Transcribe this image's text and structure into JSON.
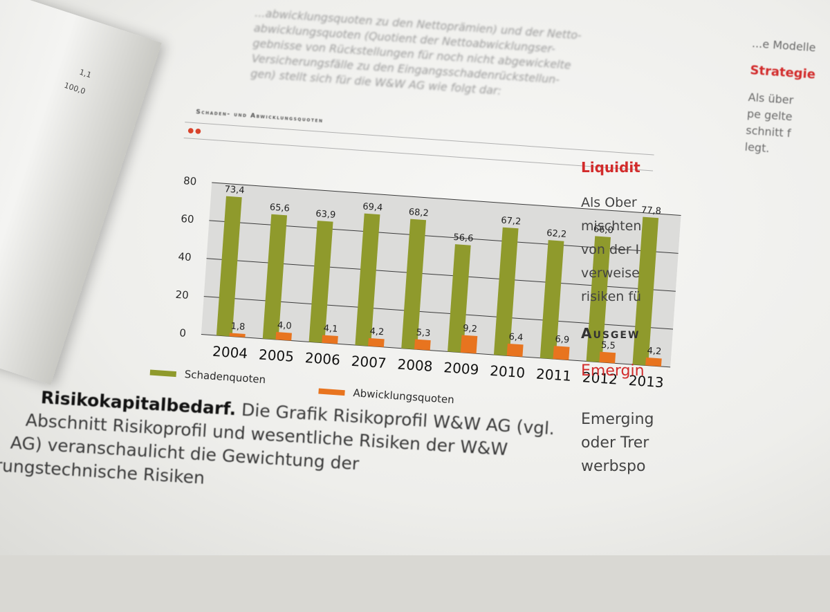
{
  "chart_data": {
    "type": "bar",
    "title": "Schaden- und Abwicklungsquoten",
    "categories": [
      "2004",
      "2005",
      "2006",
      "2007",
      "2008",
      "2009",
      "2010",
      "2011",
      "2012",
      "2013"
    ],
    "series": [
      {
        "name": "Schadenquoten",
        "values": [
          73.4,
          65.6,
          63.9,
          69.4,
          68.2,
          56.6,
          67.2,
          62.2,
          66.0,
          77.8
        ],
        "labels": [
          "73,4",
          "65,6",
          "63,9",
          "69,4",
          "68,2",
          "56,6",
          "67,2",
          "62,2",
          "66,0",
          "77,8"
        ],
        "color": "#8f9a2c"
      },
      {
        "name": "Abwicklungsquoten",
        "values": [
          1.8,
          4.0,
          4.1,
          4.2,
          5.3,
          9.2,
          6.4,
          6.9,
          5.5,
          4.2
        ],
        "labels": [
          "1,8",
          "4,0",
          "4,1",
          "4,2",
          "5,3",
          "9,2",
          "6,4",
          "6,9",
          "5,5",
          "4,2"
        ],
        "color": "#e8741f"
      }
    ],
    "yticks": [
      "0",
      "20",
      "40",
      "60",
      "80"
    ],
    "ylim": [
      0,
      80
    ],
    "grid": true,
    "legend_position": "bottom-left"
  },
  "text": {
    "body_lines": [
      "...abwicklungsquoten zu den Nettoprämien) und der Netto-",
      "abwicklungsquoten (Quotient der Nettoabwicklungser-",
      "gebnisse von Rückstellungen für noch nicht abgewickelte",
      "Versicherungsfälle zu den Eingangsschadenrückstellun-",
      "gen) stellt sich für die W&W AG wie folgt dar:"
    ],
    "right_top": [
      "...e Modelle",
      "Strategie",
      "Als über",
      "pe gelte",
      "schnitt f",
      "legt."
    ],
    "right_lower": {
      "heading1": "Liquidit",
      "lines1": [
        "Als Ober",
        "mischten",
        "von der I",
        "verweise",
        "risiken fü"
      ],
      "heading2": "Ausgew",
      "heading3": "Emergin",
      "lines2": [
        "Emerging",
        "oder Trer",
        "werbspo"
      ]
    },
    "bottom": {
      "lead": "Risikokapitalbedarf.",
      "line1_rest": " Die Grafik Risikoprofil W&W AG (vgl.",
      "line2": "Abschnitt Risikoprofil und wesentliche Risiken der W&W",
      "line3": "AG) veranschaulicht die Gewichtung der",
      "line4": "rungstechnische Risiken"
    },
    "left_page_numbers": [
      "1,1",
      "100,0"
    ]
  }
}
